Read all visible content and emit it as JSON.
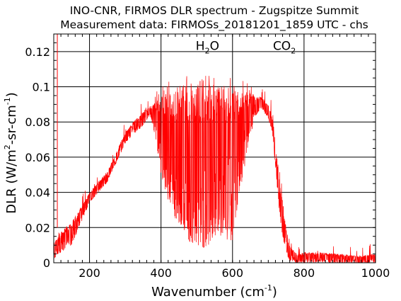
{
  "chart_data": {
    "type": "line",
    "title": "INO-CNR, FIRMOS DLR spectrum - Zugspitze Summit",
    "subtitle": "Measurement data: FIRMOSs_20181201_1859 UTC - chs",
    "xlabel": {
      "base": "Wavenumber (cm",
      "sup": "-1",
      "tail": ")"
    },
    "ylabel": {
      "base": "DLR (W/m",
      "sup1": "2",
      "mid": "-sr-cm",
      "sup2": "-1",
      "tail": ")"
    },
    "xlim": [
      100,
      1000
    ],
    "ylim": [
      0,
      0.13
    ],
    "xticks": [
      200,
      400,
      600,
      800,
      1000
    ],
    "xtick_labels": [
      "200",
      "400",
      "600",
      "800",
      "1000"
    ],
    "yticks": [
      0,
      0.02,
      0.04,
      0.06,
      0.08,
      0.1,
      0.12
    ],
    "ytick_labels": [
      "0",
      "0.02",
      "0.04",
      "0.06",
      "0.08",
      "0.1",
      "0.12"
    ],
    "grid": true,
    "annotations": [
      {
        "base": "H",
        "sub": "2",
        "tail": "O",
        "x": 530,
        "y": 0.121
      },
      {
        "base": "CO",
        "sub": "2",
        "tail": "",
        "x": 745,
        "y": 0.121
      }
    ],
    "series": [
      {
        "color": "#ff0000",
        "x": [
          100,
          110,
          120,
          150,
          200,
          250,
          300,
          330,
          350,
          370,
          385,
          400,
          420,
          440,
          460,
          480,
          500,
          520,
          540,
          560,
          580,
          600,
          620,
          640,
          660,
          680,
          700,
          710,
          720,
          730,
          740,
          750,
          760,
          780,
          800,
          850,
          900,
          950,
          1000
        ],
        "y": [
          0.012,
          0.014,
          0.018,
          0.023,
          0.04,
          0.052,
          0.074,
          0.082,
          0.086,
          0.089,
          0.091,
          0.095,
          0.098,
          0.1,
          0.101,
          0.102,
          0.102,
          0.103,
          0.102,
          0.101,
          0.1,
          0.099,
          0.098,
          0.097,
          0.096,
          0.094,
          0.091,
          0.085,
          0.07,
          0.05,
          0.035,
          0.02,
          0.01,
          0.005,
          0.006,
          0.006,
          0.005,
          0.004,
          0.005
        ],
        "low_envelope_y": [
          0.002,
          0.004,
          0.006,
          0.01,
          0.034,
          0.046,
          0.068,
          0.074,
          0.078,
          0.084,
          0.07,
          0.05,
          0.035,
          0.025,
          0.02,
          0.012,
          0.01,
          0.006,
          0.012,
          0.018,
          0.01,
          0.012,
          0.04,
          0.06,
          0.082,
          0.088,
          0.082,
          0.075,
          0.055,
          0.03,
          0.015,
          0.006,
          0.001,
          0.0,
          0.0,
          0.0,
          0.0,
          0.0,
          0.0
        ]
      }
    ]
  }
}
